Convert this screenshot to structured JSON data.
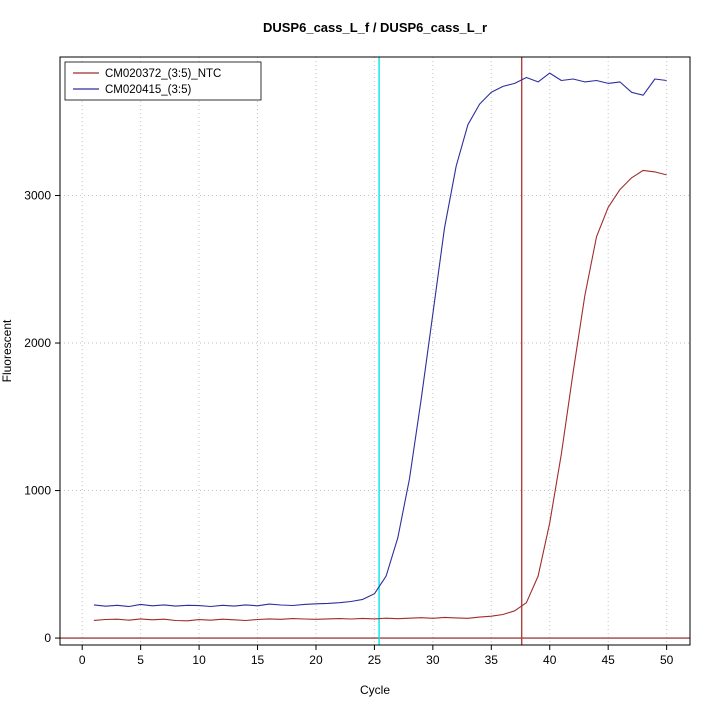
{
  "title": "DUSP6_cass_L_f / DUSP6_cass_L_r",
  "chart_data": {
    "type": "line",
    "title": "DUSP6_cass_L_f / DUSP6_cass_L_r",
    "xlabel": "Cycle",
    "ylabel": "Fluorescent",
    "xlim": [
      0,
      50
    ],
    "ylim": [
      0,
      3900
    ],
    "xticks": [
      0,
      5,
      10,
      15,
      20,
      25,
      30,
      35,
      40,
      45,
      50
    ],
    "yticks": [
      0,
      1000,
      2000,
      3000
    ],
    "grid": true,
    "legend_position": "top-left",
    "vlines": [
      {
        "x": 25.4,
        "color": "#00e6e6",
        "name": "threshold-cycle-line-cyan"
      },
      {
        "x": 37.6,
        "color": "#b04040",
        "name": "threshold-cycle-line-red"
      }
    ],
    "hlines": [
      {
        "y": 0,
        "color": "#8b1a1a",
        "name": "zero-baseline-line"
      }
    ],
    "series": [
      {
        "name": "CM020372_(3:5)_NTC",
        "color": "#a02c2c",
        "x": [
          1,
          2,
          3,
          4,
          5,
          6,
          7,
          8,
          9,
          10,
          11,
          12,
          13,
          14,
          15,
          16,
          17,
          18,
          19,
          20,
          21,
          22,
          23,
          24,
          25,
          26,
          27,
          28,
          29,
          30,
          31,
          32,
          33,
          34,
          35,
          36,
          37,
          38,
          39,
          40,
          41,
          42,
          43,
          44,
          45,
          46,
          47,
          48,
          49,
          50
        ],
        "y": [
          120,
          126,
          128,
          121,
          130,
          124,
          128,
          119,
          117,
          125,
          121,
          128,
          124,
          119,
          126,
          130,
          127,
          132,
          129,
          127,
          130,
          132,
          129,
          133,
          130,
          135,
          131,
          135,
          138,
          134,
          140,
          137,
          134,
          142,
          148,
          160,
          185,
          240,
          420,
          780,
          1250,
          1800,
          2320,
          2720,
          2920,
          3040,
          3120,
          3170,
          3160,
          3140
        ]
      },
      {
        "name": "CM020415_(3:5)",
        "color": "#2e2e9e",
        "x": [
          1,
          2,
          3,
          4,
          5,
          6,
          7,
          8,
          9,
          10,
          11,
          12,
          13,
          14,
          15,
          16,
          17,
          18,
          19,
          20,
          21,
          22,
          23,
          24,
          25,
          26,
          27,
          28,
          29,
          30,
          31,
          32,
          33,
          34,
          35,
          36,
          37,
          38,
          39,
          40,
          41,
          42,
          43,
          44,
          45,
          46,
          47,
          48,
          49,
          50
        ],
        "y": [
          225,
          216,
          222,
          214,
          228,
          219,
          225,
          217,
          222,
          220,
          214,
          222,
          217,
          225,
          219,
          230,
          224,
          221,
          228,
          232,
          235,
          240,
          248,
          262,
          300,
          420,
          680,
          1080,
          1620,
          2200,
          2780,
          3200,
          3480,
          3620,
          3700,
          3740,
          3760,
          3800,
          3770,
          3830,
          3780,
          3790,
          3770,
          3780,
          3760,
          3770,
          3700,
          3680,
          3790,
          3780
        ]
      }
    ]
  }
}
